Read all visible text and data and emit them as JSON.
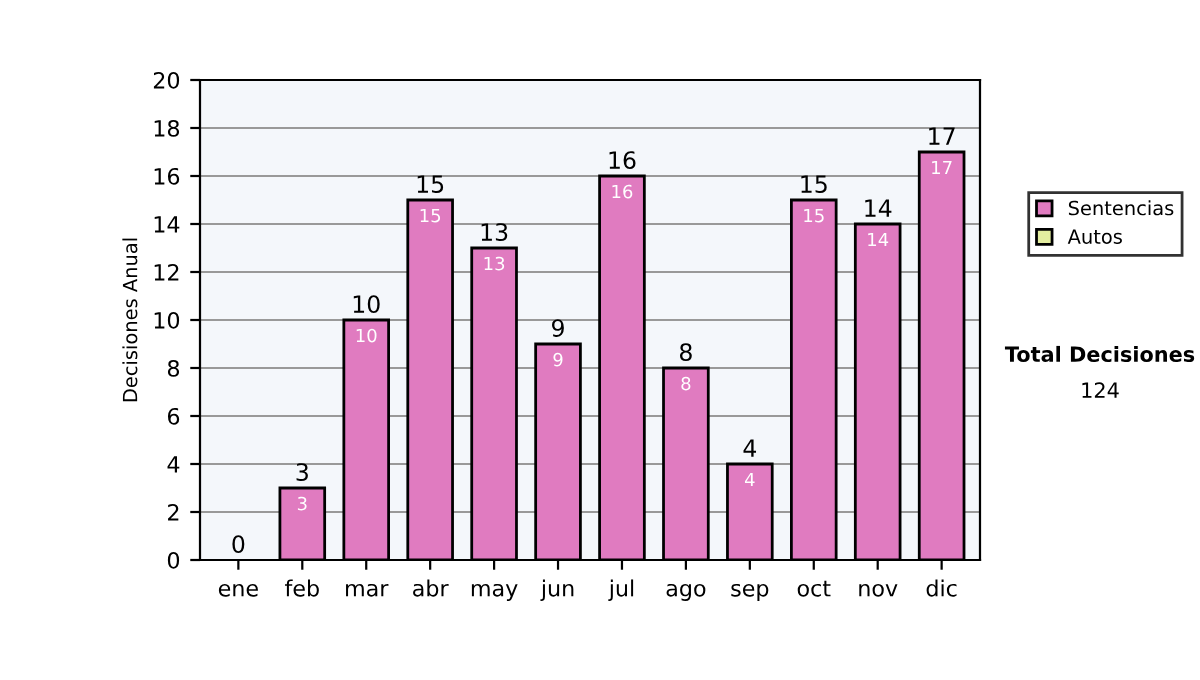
{
  "chart_data": {
    "type": "bar",
    "stacked": true,
    "ylabel": "Decisiones Anual",
    "categories": [
      "ene",
      "feb",
      "mar",
      "abr",
      "may",
      "jun",
      "jul",
      "ago",
      "sep",
      "oct",
      "nov",
      "dic"
    ],
    "series": [
      {
        "name": "Sentencias",
        "color": "#e07bc0",
        "values": [
          0,
          3,
          10,
          15,
          13,
          9,
          16,
          8,
          4,
          15,
          14,
          17
        ],
        "value_labels": [
          null,
          "3",
          "10",
          "15",
          "13",
          "9",
          "16",
          "8",
          "4",
          "15",
          "14",
          "17"
        ]
      },
      {
        "name": "Autos",
        "color": "#e4eea0",
        "values": [
          0,
          0,
          0,
          0,
          0,
          0,
          0,
          0,
          0,
          0,
          0,
          0
        ]
      }
    ],
    "totals": [
      "0",
      "3",
      "10",
      "15",
      "13",
      "9",
      "16",
      "8",
      "4",
      "15",
      "14",
      "17"
    ],
    "ylim": [
      0,
      20
    ],
    "yticks": [
      0,
      2,
      4,
      6,
      8,
      10,
      12,
      14,
      16,
      18,
      20
    ],
    "grid": "y",
    "legend": "right",
    "annotations": [
      "Total Decisiones",
      "124"
    ]
  }
}
